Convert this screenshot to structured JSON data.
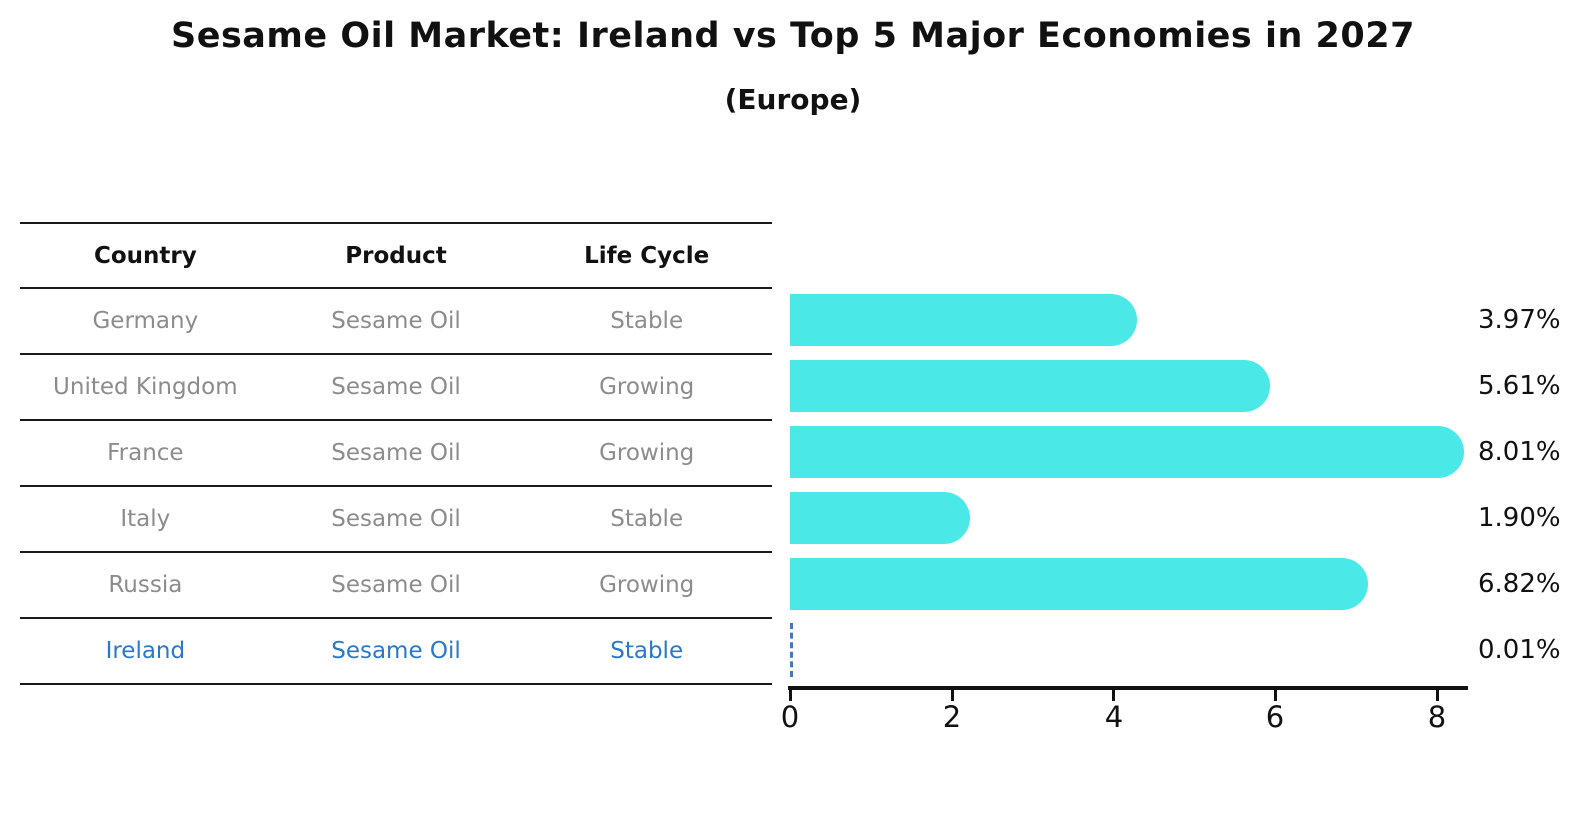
{
  "title": "Sesame Oil Market: Ireland vs Top 5 Major Economies in 2027",
  "subtitle": "(Europe)",
  "table": {
    "headers": {
      "country": "Country",
      "product": "Product",
      "life_cycle": "Life Cycle"
    },
    "rows": [
      {
        "country": "Germany",
        "product": "Sesame Oil",
        "life_cycle": "Stable"
      },
      {
        "country": "United Kingdom",
        "product": "Sesame Oil",
        "life_cycle": "Growing"
      },
      {
        "country": "France",
        "product": "Sesame Oil",
        "life_cycle": "Growing"
      },
      {
        "country": "Italy",
        "product": "Sesame Oil",
        "life_cycle": "Stable"
      },
      {
        "country": "Russia",
        "product": "Sesame Oil",
        "life_cycle": "Growing"
      },
      {
        "country": "Ireland",
        "product": "Sesame Oil",
        "life_cycle": "Stable"
      }
    ]
  },
  "chart_data": {
    "type": "bar",
    "orientation": "horizontal",
    "title": "Sesame Oil Market: Ireland vs Top 5 Major Economies in 2027",
    "subtitle": "(Europe)",
    "categories": [
      "Germany",
      "United Kingdom",
      "France",
      "Italy",
      "Russia",
      "Ireland"
    ],
    "values": [
      3.97,
      5.61,
      8.01,
      1.9,
      6.82,
      0.01
    ],
    "value_labels": [
      "3.97%",
      "5.61%",
      "8.01%",
      "1.90%",
      "6.82%",
      "0.01%"
    ],
    "x_ticks": [
      "0",
      "2",
      "4",
      "6",
      "8"
    ],
    "xlim": [
      0,
      8.4
    ],
    "ylabel": "",
    "xlabel": "",
    "grid": false,
    "legend_position": "none",
    "highlight_category": "Ireland",
    "highlight_style": "dashed-zero-marker"
  },
  "colors": {
    "bar": "#4be8e8",
    "highlight_text": "#2878cb",
    "dashed_marker": "#4777bd",
    "table_text": "#8c8c8c",
    "header_text": "#111111",
    "axis": "#111111"
  }
}
